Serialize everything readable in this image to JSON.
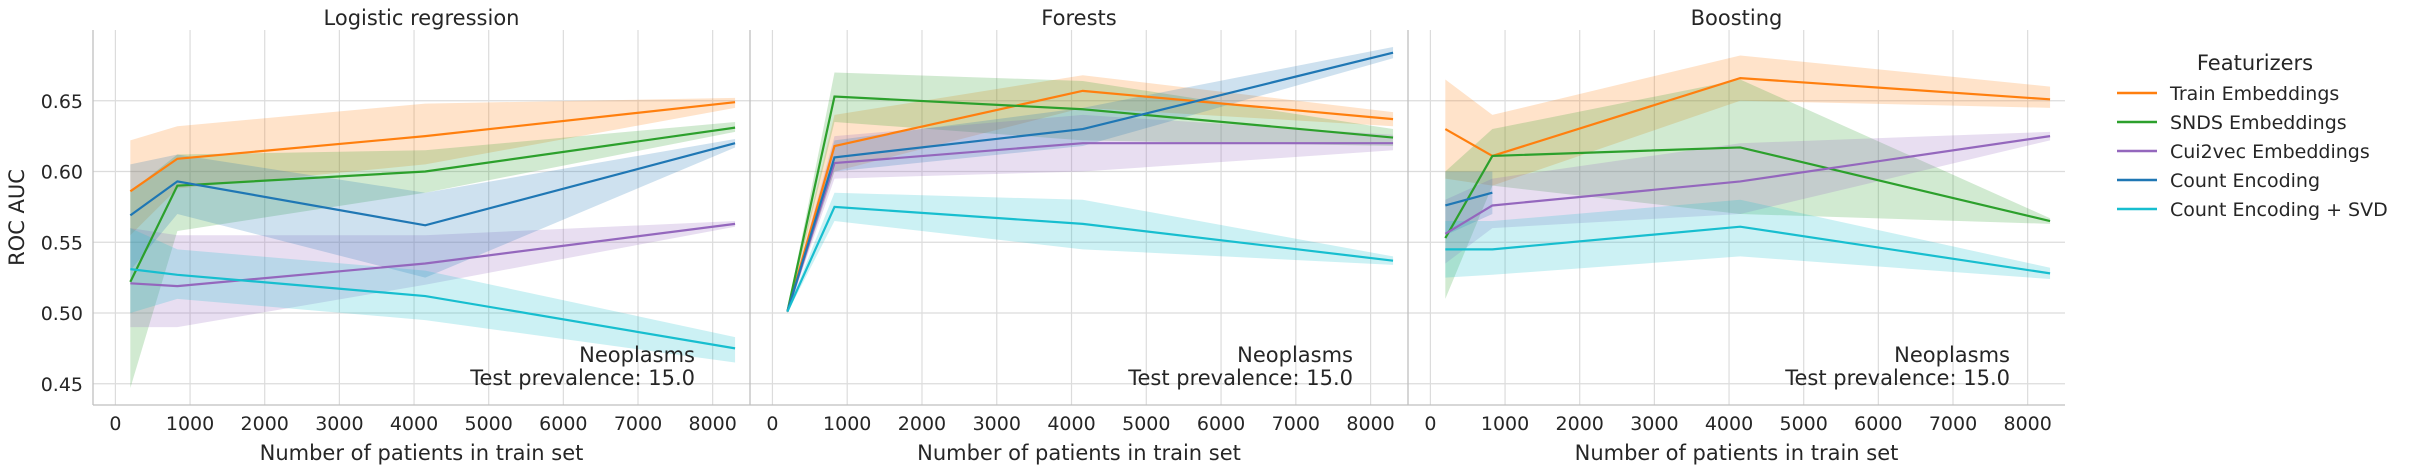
{
  "chart_data": {
    "type": "line",
    "ylabel": "ROC AUC",
    "ylim": [
      0.435,
      0.7
    ],
    "xlim": [
      -300,
      8500
    ],
    "xticks": [
      0,
      1000,
      2000,
      3000,
      4000,
      5000,
      6000,
      7000,
      8000
    ],
    "yticks": [
      "0.45",
      "0.50",
      "0.55",
      "0.60",
      "0.65"
    ],
    "grid": true,
    "legend": {
      "title": "Featurizers",
      "placement": "right",
      "entries": [
        "Train Embeddings",
        "SNDS Embeddings",
        "Cui2vec Embeddings",
        "Count Encoding",
        "Count Encoding + SVD"
      ]
    },
    "colors": {
      "Train Embeddings": "#ff7f0e",
      "SNDS Embeddings": "#2ca02c",
      "Cui2vec Embeddings": "#9467bd",
      "Count Encoding": "#1f77b4",
      "Count Encoding + SVD": "#17becf"
    },
    "panels": [
      {
        "title": "Logistic regression",
        "xlabel": "Number of patients in train set",
        "annotation": [
          "Neoplasms",
          "Test prevalence: 15.0"
        ],
        "series": [
          {
            "name": "Train Embeddings",
            "x": [
              200,
              830,
              4150,
              8300
            ],
            "y": [
              0.586,
              0.609,
              0.625,
              0.649
            ],
            "lo": [
              0.555,
              0.588,
              0.605,
              0.645
            ],
            "hi": [
              0.622,
              0.632,
              0.648,
              0.652
            ]
          },
          {
            "name": "SNDS Embeddings",
            "x": [
              200,
              830,
              4150,
              8300
            ],
            "y": [
              0.522,
              0.59,
              0.6,
              0.631
            ],
            "lo": [
              0.447,
              0.558,
              0.585,
              0.628
            ],
            "hi": [
              0.586,
              0.612,
              0.615,
              0.635
            ]
          },
          {
            "name": "Cui2vec Embeddings",
            "x": [
              200,
              830,
              4150,
              8300
            ],
            "y": [
              0.521,
              0.519,
              0.535,
              0.563
            ],
            "lo": [
              0.49,
              0.49,
              0.52,
              0.561
            ],
            "hi": [
              0.56,
              0.555,
              0.555,
              0.565
            ]
          },
          {
            "name": "Count Encoding",
            "x": [
              200,
              830,
              4150,
              8300
            ],
            "y": [
              0.569,
              0.593,
              0.562,
              0.62
            ],
            "lo": [
              0.53,
              0.57,
              0.525,
              0.617
            ],
            "hi": [
              0.605,
              0.612,
              0.585,
              0.623
            ]
          },
          {
            "name": "Count Encoding + SVD",
            "x": [
              200,
              830,
              4150,
              8300
            ],
            "y": [
              0.531,
              0.527,
              0.512,
              0.475
            ],
            "lo": [
              0.5,
              0.51,
              0.495,
              0.465
            ],
            "hi": [
              0.56,
              0.545,
              0.53,
              0.483
            ]
          }
        ]
      },
      {
        "title": "Forests",
        "xlabel": "Number of patients in train set",
        "annotation": [
          "Neoplasms",
          "Test prevalence: 15.0"
        ],
        "series": [
          {
            "name": "Train Embeddings",
            "x": [
              200,
              830,
              4150,
              8300
            ],
            "y": [
              0.501,
              0.618,
              0.657,
              0.637
            ],
            "lo": [
              0.5,
              0.6,
              0.645,
              0.632
            ],
            "hi": [
              0.502,
              0.64,
              0.668,
              0.642
            ]
          },
          {
            "name": "SNDS Embeddings",
            "x": [
              200,
              830,
              4150,
              8300
            ],
            "y": [
              0.501,
              0.653,
              0.644,
              0.624
            ],
            "lo": [
              0.5,
              0.635,
              0.622,
              0.618
            ],
            "hi": [
              0.502,
              0.67,
              0.664,
              0.63
            ]
          },
          {
            "name": "Cui2vec Embeddings",
            "x": [
              200,
              830,
              4150,
              8300
            ],
            "y": [
              0.501,
              0.606,
              0.62,
              0.62
            ],
            "lo": [
              0.5,
              0.595,
              0.6,
              0.615
            ],
            "hi": [
              0.502,
              0.625,
              0.64,
              0.626
            ]
          },
          {
            "name": "Count Encoding",
            "x": [
              200,
              830,
              4150,
              8300
            ],
            "y": [
              0.501,
              0.61,
              0.63,
              0.684
            ],
            "lo": [
              0.5,
              0.6,
              0.618,
              0.68
            ],
            "hi": [
              0.502,
              0.622,
              0.645,
              0.688
            ]
          },
          {
            "name": "Count Encoding + SVD",
            "x": [
              200,
              830,
              4150,
              8300
            ],
            "y": [
              0.501,
              0.575,
              0.563,
              0.537
            ],
            "lo": [
              0.5,
              0.565,
              0.545,
              0.534
            ],
            "hi": [
              0.502,
              0.585,
              0.58,
              0.54
            ]
          }
        ]
      },
      {
        "title": "Boosting",
        "xlabel": "Number of patients in train set",
        "annotation": [
          "Neoplasms",
          "Test prevalence: 15.0"
        ],
        "series": [
          {
            "name": "Train Embeddings",
            "x": [
              200,
              830,
              4150,
              8300
            ],
            "y": [
              0.63,
              0.611,
              0.666,
              0.651
            ],
            "lo": [
              0.595,
              0.59,
              0.65,
              0.645
            ],
            "hi": [
              0.665,
              0.64,
              0.682,
              0.66
            ]
          },
          {
            "name": "SNDS Embeddings",
            "x": [
              200,
              830,
              4150,
              8300
            ],
            "y": [
              0.553,
              0.611,
              0.617,
              0.565
            ],
            "lo": [
              0.51,
              0.59,
              0.57,
              0.563
            ],
            "hi": [
              0.6,
              0.63,
              0.665,
              0.567
            ]
          },
          {
            "name": "Cui2vec Embeddings",
            "x": [
              200,
              830,
              4150,
              8300
            ],
            "y": [
              0.556,
              0.576,
              0.593,
              0.625
            ],
            "lo": [
              0.535,
              0.56,
              0.57,
              0.622
            ],
            "hi": [
              0.58,
              0.595,
              0.62,
              0.628
            ]
          },
          {
            "name": "Count Encoding",
            "x": [
              200,
              830,
              4150,
              8300
            ],
            "y": [
              0.576,
              0.585,
              null,
              null
            ],
            "lo": [
              0.555,
              0.57,
              null,
              null
            ],
            "hi": [
              0.6,
              0.6,
              null,
              null
            ]
          },
          {
            "name": "Count Encoding + SVD",
            "x": [
              200,
              830,
              4150,
              8300
            ],
            "y": [
              0.545,
              0.545,
              0.561,
              0.528
            ],
            "lo": [
              0.525,
              0.527,
              0.54,
              0.524
            ],
            "hi": [
              0.565,
              0.565,
              0.58,
              0.532
            ]
          }
        ]
      }
    ]
  }
}
